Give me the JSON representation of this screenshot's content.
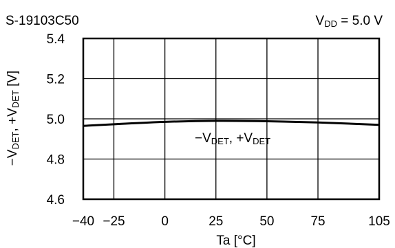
{
  "chart_data": {
    "type": "line",
    "title": "S-19103C50",
    "condition": {
      "prefix": "V",
      "subscript": "DD",
      "value": " = 5.0 V"
    },
    "xlabel": "Ta [°C]",
    "ylabel": {
      "parts": [
        {
          "text": "−V",
          "sub": false
        },
        {
          "text": "DET",
          "sub": true
        },
        {
          "text": ", +V",
          "sub": false
        },
        {
          "text": "DET",
          "sub": true
        },
        {
          "text": " [V]",
          "sub": false
        }
      ]
    },
    "xlim": [
      -40,
      105
    ],
    "ylim": [
      4.6,
      5.4
    ],
    "x_ticks": [
      -40,
      -25,
      0,
      25,
      50,
      75,
      105
    ],
    "x_tick_labels": [
      "−40",
      "−25",
      "0",
      "25",
      "50",
      "75",
      "105"
    ],
    "y_ticks": [
      4.6,
      4.8,
      5.0,
      5.2,
      5.4
    ],
    "y_tick_labels": [
      "4.6",
      "4.8",
      "5.0",
      "5.2",
      "5.4"
    ],
    "grid": true,
    "series": [
      {
        "name": {
          "parts": [
            {
              "text": "−V",
              "sub": false
            },
            {
              "text": "DET",
              "sub": true
            },
            {
              "text": ", +V",
              "sub": false
            },
            {
              "text": "DET",
              "sub": true
            }
          ]
        },
        "x": [
          -40,
          -25,
          0,
          25,
          50,
          75,
          105
        ],
        "y": [
          4.965,
          4.973,
          4.985,
          4.99,
          4.988,
          4.982,
          4.97
        ]
      }
    ]
  }
}
